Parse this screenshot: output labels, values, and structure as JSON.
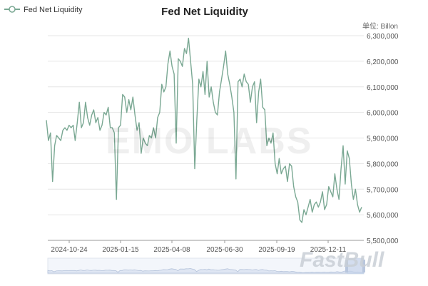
{
  "watermark": "EMO LABS",
  "brand": "FastBull",
  "chart_data": {
    "type": "line",
    "title": "Fed Net Liquidity",
    "unit_label": "单位: Billon",
    "legend": [
      "Fed Net Liquidity"
    ],
    "legend_position": "top-left",
    "ylim": [
      5500000,
      6300000
    ],
    "y_ticks": [
      "5,500,000",
      "5,600,000",
      "5,700,000",
      "5,800,000",
      "5,900,000",
      "6,000,000",
      "6,100,000",
      "6,200,000",
      "6,300,000"
    ],
    "x_ticks": [
      "2024-10-24",
      "2025-01-15",
      "2025-04-08",
      "2025-06-30",
      "2025-09-19",
      "2025-12-11"
    ],
    "line_color": "#7aa893",
    "series": [
      {
        "name": "Fed Net Liquidity",
        "values": [
          5970000,
          5890000,
          5920000,
          5730000,
          5870000,
          5910000,
          5900000,
          5890000,
          5930000,
          5940000,
          5930000,
          5950000,
          5940000,
          5950000,
          5890000,
          5960000,
          6040000,
          5940000,
          5960000,
          6040000,
          5980000,
          5950000,
          5990000,
          6010000,
          5960000,
          5980000,
          5930000,
          5950000,
          6000000,
          5990000,
          6020000,
          5940000,
          5940000,
          5920000,
          5660000,
          5940000,
          5950000,
          6070000,
          6060000,
          6000000,
          6050000,
          6010000,
          6060000,
          5990000,
          5930000,
          5960000,
          5840000,
          5900000,
          5880000,
          5870000,
          5910000,
          5900000,
          5940000,
          5900000,
          5980000,
          6000000,
          6110000,
          6080000,
          6100000,
          6190000,
          6240000,
          6180000,
          6150000,
          5880000,
          6210000,
          6200000,
          6180000,
          6250000,
          6230000,
          6290000,
          6200000,
          6110000,
          5780000,
          5970000,
          6130000,
          6100000,
          6160000,
          6070000,
          6200000,
          6060000,
          6100000,
          6040000,
          6000000,
          5990000,
          6080000,
          6130000,
          6180000,
          6240000,
          6150000,
          6110000,
          6060000,
          6000000,
          5740000,
          6120000,
          6130000,
          6100000,
          6150000,
          6120000,
          6110000,
          6040000,
          6100000,
          6120000,
          5960000,
          6080000,
          6130000,
          6020000,
          6010000,
          5870000,
          5900000,
          5880000,
          5920000,
          5800000,
          5760000,
          5820000,
          5760000,
          5780000,
          5790000,
          5730000,
          5800000,
          5790000,
          5710000,
          5670000,
          5650000,
          5580000,
          5570000,
          5620000,
          5600000,
          5630000,
          5660000,
          5610000,
          5640000,
          5650000,
          5630000,
          5650000,
          5690000,
          5620000,
          5640000,
          5710000,
          5690000,
          5670000,
          5760000,
          5700000,
          5660000,
          5780000,
          5870000,
          5720000,
          5850000,
          5820000,
          5720000,
          5660000,
          5700000,
          5640000,
          5610000,
          5630000
        ]
      }
    ]
  }
}
